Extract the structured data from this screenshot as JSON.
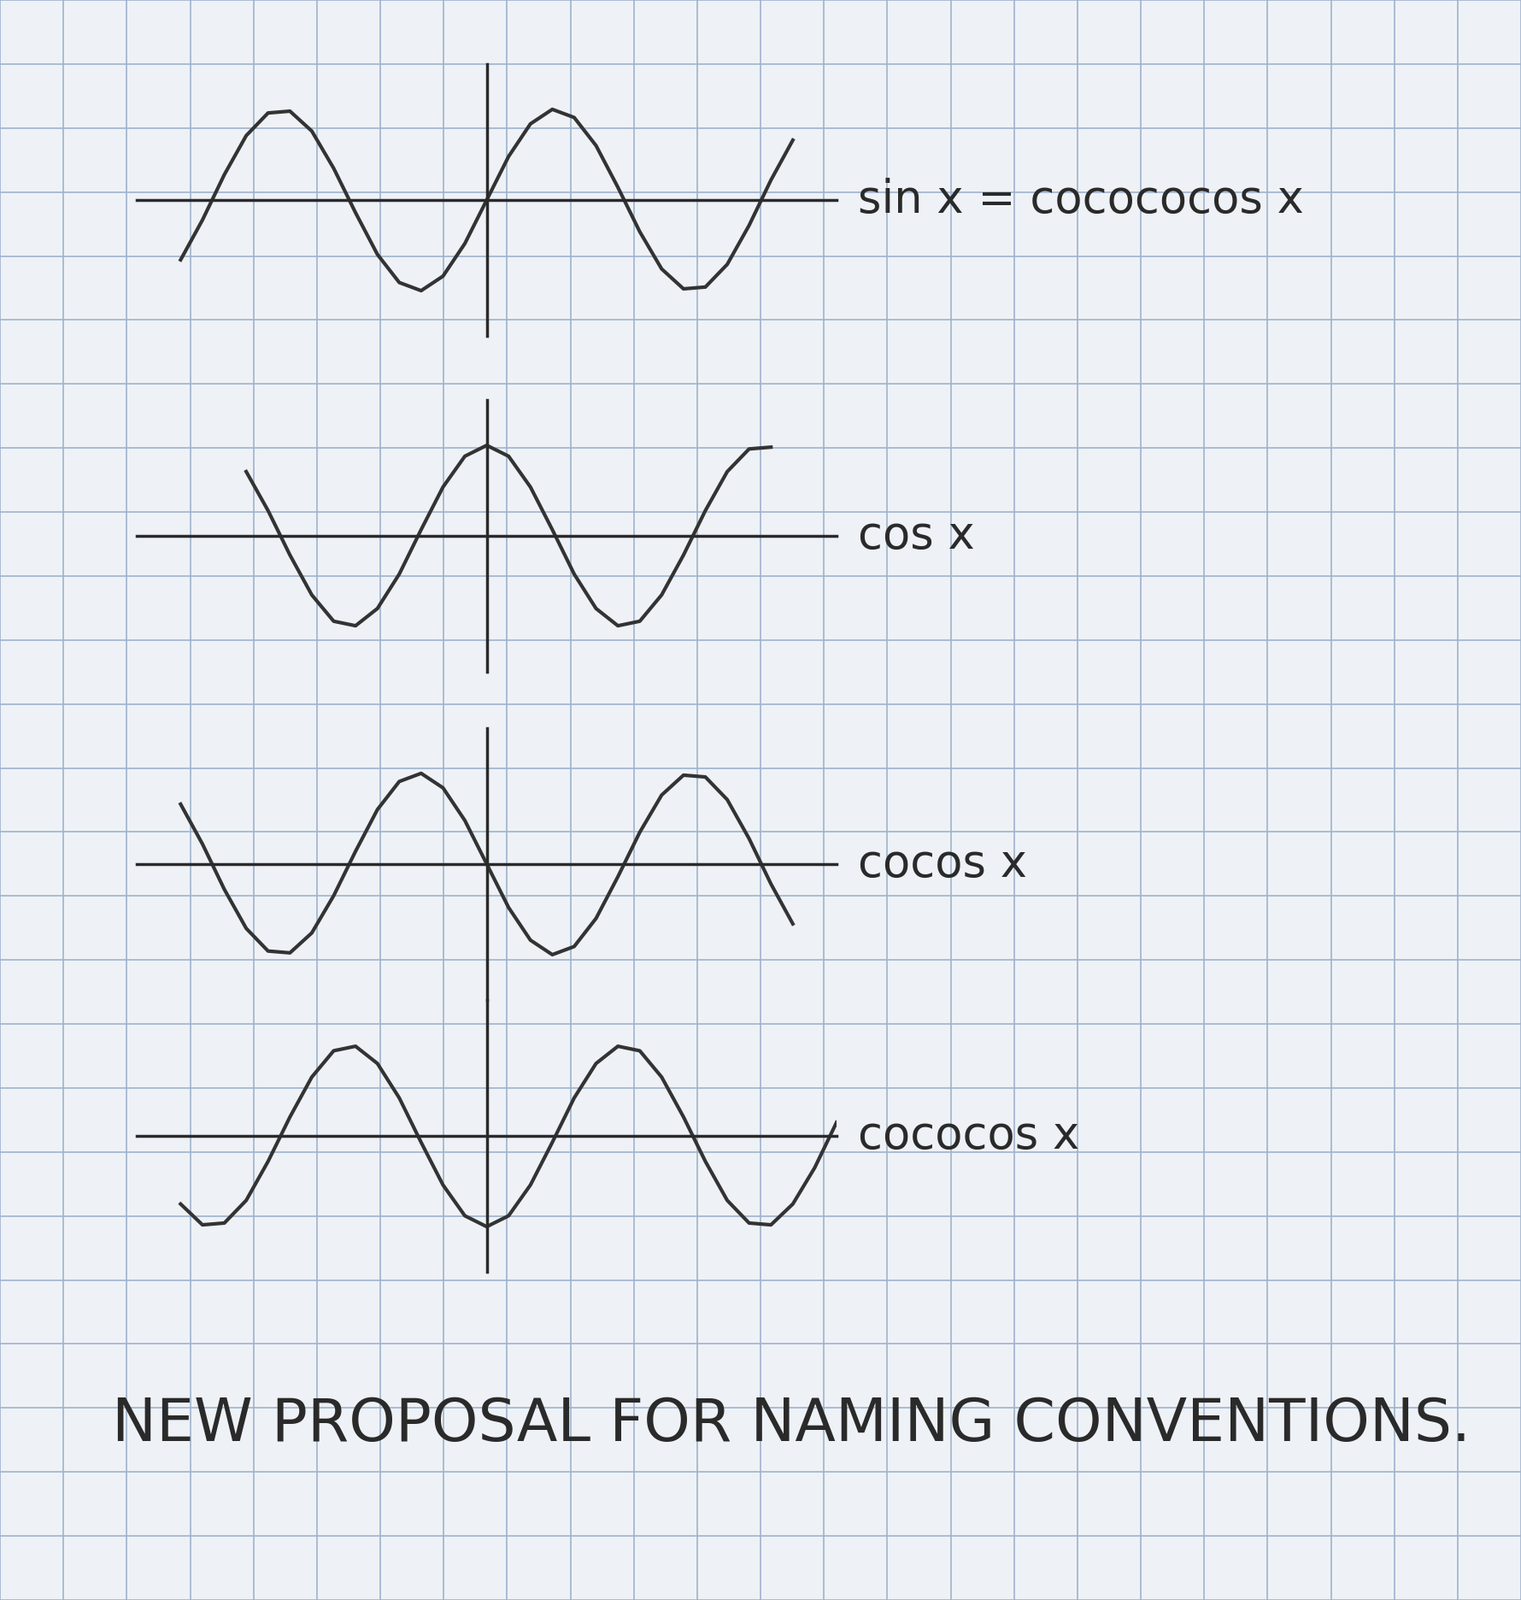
{
  "caption": "NEW PROPOSAL FOR NAMING CONVENTIONS.",
  "chart_data": [
    {
      "type": "line",
      "annotation": "sin x = cocococos x",
      "tick_labels": false,
      "xlim": [
        -8,
        8
      ],
      "ylim": [
        -1.5,
        1.5
      ],
      "xticks": [],
      "yticks": [],
      "x": [
        -7,
        -6.5,
        -6,
        -5.5,
        -5,
        -4.5,
        -4,
        -3.5,
        -3,
        -2.5,
        -2,
        -1.5,
        -1,
        -0.5,
        0,
        0.5,
        1,
        1.5,
        2,
        2.5,
        3,
        3.5,
        4,
        4.5,
        5,
        5.5,
        6,
        6.5,
        7
      ],
      "values": [
        -0.66,
        -0.22,
        0.28,
        0.71,
        0.96,
        0.98,
        0.76,
        0.35,
        -0.14,
        -0.6,
        -0.91,
        -1.0,
        -0.84,
        -0.48,
        0,
        0.48,
        0.84,
        1.0,
        0.91,
        0.6,
        0.14,
        -0.35,
        -0.76,
        -0.98,
        -0.96,
        -0.71,
        -0.28,
        0.22,
        0.66
      ],
      "color": "#333333",
      "line_style": "solid"
    },
    {
      "type": "line",
      "annotation": "cos x",
      "tick_labels": false,
      "xlim": [
        -8,
        8
      ],
      "ylim": [
        -1.5,
        1.5
      ],
      "xticks": [],
      "yticks": [],
      "x": [
        -5.5,
        -5,
        -4.5,
        -4,
        -3.5,
        -3,
        -2.5,
        -2,
        -1.5,
        -1,
        -0.5,
        0,
        0.5,
        1,
        1.5,
        2,
        2.5,
        3,
        3.5,
        4,
        4.5,
        5,
        5.5,
        6,
        6.5
      ],
      "values": [
        0.71,
        0.28,
        -0.21,
        -0.65,
        -0.94,
        -0.99,
        -0.8,
        -0.42,
        0.07,
        0.54,
        0.88,
        1,
        0.88,
        0.54,
        0.07,
        -0.42,
        -0.8,
        -0.99,
        -0.94,
        -0.65,
        -0.21,
        0.28,
        0.71,
        0.96,
        0.98
      ],
      "color": "#333333",
      "line_style": "solid"
    },
    {
      "type": "line",
      "annotation": "cocos x",
      "tick_labels": false,
      "xlim": [
        -8,
        8
      ],
      "ylim": [
        -1.5,
        1.5
      ],
      "xticks": [],
      "yticks": [],
      "x": [
        -7,
        -6.5,
        -6,
        -5.5,
        -5,
        -4.5,
        -4,
        -3.5,
        -3,
        -2.5,
        -2,
        -1.5,
        -1,
        -0.5,
        0,
        0.5,
        1,
        1.5,
        2,
        2.5,
        3,
        3.5,
        4,
        4.5,
        5,
        5.5,
        6,
        6.5,
        7
      ],
      "values": [
        0.66,
        0.22,
        -0.28,
        -0.71,
        -0.96,
        -0.98,
        -0.76,
        -0.35,
        0.14,
        0.6,
        0.91,
        1.0,
        0.84,
        0.48,
        0,
        -0.48,
        -0.84,
        -1.0,
        -0.91,
        -0.6,
        -0.14,
        0.35,
        0.76,
        0.98,
        0.96,
        0.71,
        0.28,
        -0.22,
        -0.66
      ],
      "color": "#333333",
      "line_style": "solid"
    },
    {
      "type": "line",
      "annotation": "cococos x",
      "tick_labels": false,
      "xlim": [
        -8,
        8
      ],
      "ylim": [
        -1.5,
        1.5
      ],
      "xticks": [],
      "yticks": [],
      "x": [
        -7,
        -6.5,
        -6,
        -5.5,
        -5,
        -4.5,
        -4,
        -3.5,
        -3,
        -2.5,
        -2,
        -1.5,
        -1,
        -0.5,
        0,
        0.5,
        1,
        1.5,
        2,
        2.5,
        3,
        3.5,
        4,
        4.5,
        5,
        5.5,
        6,
        6.5,
        7,
        7.5,
        8
      ],
      "values": [
        -0.75,
        -0.98,
        -0.96,
        -0.71,
        -0.28,
        0.21,
        0.65,
        0.94,
        0.99,
        0.8,
        0.42,
        -0.07,
        -0.54,
        -0.88,
        -1,
        -0.88,
        -0.54,
        -0.07,
        0.42,
        0.8,
        0.99,
        0.94,
        0.65,
        0.21,
        -0.28,
        -0.71,
        -0.96,
        -0.98,
        -0.75,
        -0.35,
        0.15
      ],
      "color": "#333333",
      "line_style": "solid"
    }
  ]
}
